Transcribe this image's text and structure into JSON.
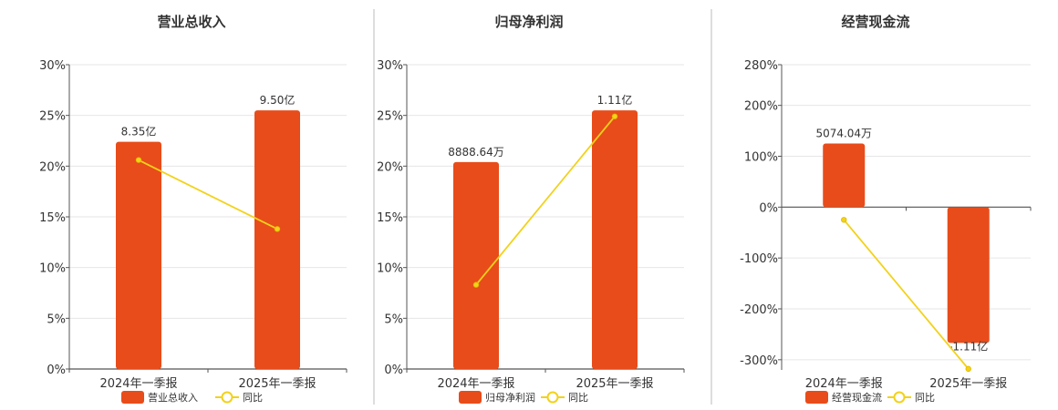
{
  "legend": {
    "yoy_label": "同比"
  },
  "colors": {
    "bar": "#e84c1a",
    "line": "#f2d21b",
    "axis": "#555555",
    "grid": "#e6e6e6",
    "divider": "#bbbbbb"
  },
  "chart_data": [
    {
      "type": "bar",
      "title": "营业总收入",
      "categories": [
        "2024年一季报",
        "2025年一季报"
      ],
      "series": [
        {
          "name": "营业总收入",
          "type": "bar",
          "values": [
            22.4,
            25.5
          ],
          "labels": [
            "8.35亿",
            "9.50亿"
          ]
        },
        {
          "name": "同比",
          "type": "line",
          "values": [
            20.6,
            13.8
          ]
        }
      ],
      "ylim": [
        0,
        30
      ],
      "yticks": [
        0,
        5,
        10,
        15,
        20,
        25,
        30
      ],
      "ytick_labels": [
        "0%",
        "5%",
        "10%",
        "15%",
        "20%",
        "25%",
        "30%"
      ],
      "grid": true,
      "legend_position": "bottom"
    },
    {
      "type": "bar",
      "title": "归母净利润",
      "categories": [
        "2024年一季报",
        "2025年一季报"
      ],
      "series": [
        {
          "name": "归母净利润",
          "type": "bar",
          "values": [
            20.4,
            25.5
          ],
          "labels": [
            "8888.64万",
            "1.11亿"
          ]
        },
        {
          "name": "同比",
          "type": "line",
          "values": [
            8.3,
            24.9
          ]
        }
      ],
      "ylim": [
        0,
        30
      ],
      "yticks": [
        0,
        5,
        10,
        15,
        20,
        25,
        30
      ],
      "ytick_labels": [
        "0%",
        "5%",
        "10%",
        "15%",
        "20%",
        "25%",
        "30%"
      ],
      "grid": true,
      "legend_position": "bottom"
    },
    {
      "type": "bar",
      "title": "经营现金流",
      "categories": [
        "2024年一季报",
        "2025年一季报"
      ],
      "series": [
        {
          "name": "经营现金流",
          "type": "bar",
          "values": [
            125,
            -267
          ],
          "labels": [
            "5074.04万",
            "-1.11亿"
          ]
        },
        {
          "name": "同比",
          "type": "line",
          "values": [
            -25,
            -318
          ]
        }
      ],
      "ylim": [
        -320,
        280
      ],
      "yticks": [
        -300,
        -200,
        -100,
        0,
        100,
        200,
        280
      ],
      "ytick_labels": [
        "-300%",
        "-200%",
        "-100%",
        "0%",
        "100%",
        "200%",
        "280%"
      ],
      "grid": true,
      "legend_position": "bottom"
    }
  ]
}
